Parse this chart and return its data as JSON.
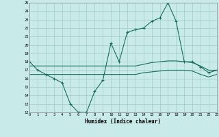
{
  "xlabel": "Humidex (Indice chaleur)",
  "ylabel": "",
  "bg_color": "#c8eae8",
  "line_color": "#1a6b5e",
  "grid_color": "#a0cdc8",
  "x_values": [
    0,
    1,
    2,
    3,
    4,
    5,
    6,
    7,
    8,
    9,
    10,
    11,
    12,
    13,
    14,
    15,
    16,
    17,
    18,
    19,
    20,
    21,
    22,
    23
  ],
  "line1_y": [
    18,
    17,
    16.5,
    16,
    15.5,
    13,
    12,
    12,
    14.5,
    15.8,
    20.2,
    18,
    21.5,
    21.8,
    22,
    22.8,
    23.2,
    25,
    22.8,
    18,
    18,
    17.4,
    16.7,
    17
  ],
  "line2_y": [
    17.5,
    17.5,
    17.5,
    17.5,
    17.5,
    17.5,
    17.5,
    17.5,
    17.5,
    17.5,
    17.5,
    17.5,
    17.5,
    17.5,
    17.7,
    17.9,
    18.0,
    18.1,
    18.1,
    18.0,
    17.9,
    17.5,
    17.0,
    17.0
  ],
  "line3_y": [
    16.5,
    16.5,
    16.5,
    16.5,
    16.5,
    16.5,
    16.5,
    16.5,
    16.5,
    16.5,
    16.5,
    16.5,
    16.5,
    16.5,
    16.7,
    16.8,
    16.9,
    17.0,
    17.0,
    17.0,
    16.9,
    16.5,
    16.2,
    16.5
  ],
  "ylim": [
    12,
    25
  ],
  "xlim": [
    0,
    23
  ],
  "yticks": [
    12,
    13,
    14,
    15,
    16,
    17,
    18,
    19,
    20,
    21,
    22,
    23,
    24,
    25
  ],
  "xticks": [
    0,
    1,
    2,
    3,
    4,
    5,
    6,
    7,
    8,
    9,
    10,
    11,
    12,
    13,
    14,
    15,
    16,
    17,
    18,
    19,
    20,
    21,
    22,
    23
  ]
}
